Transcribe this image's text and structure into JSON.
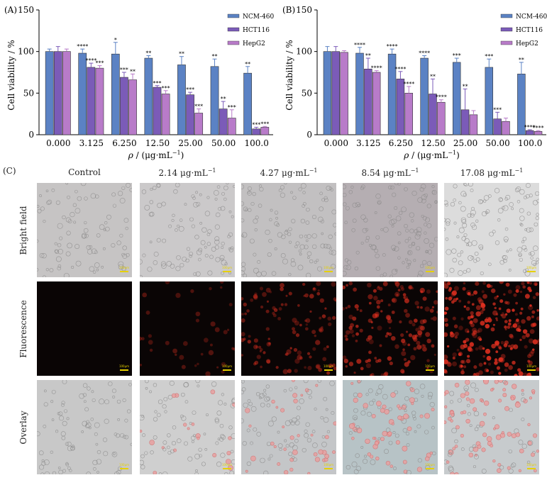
{
  "chart_data": [
    {
      "type": "bar",
      "panel_label": "(A)",
      "categories": [
        "0.000",
        "3.125",
        "6.250",
        "12.50",
        "25.00",
        "50.00",
        "100.0"
      ],
      "xlabel_symbol": "ρ",
      "xlabel_unit": " / (μg·mL",
      "xlabel_sup": "−1",
      "xlabel_tail": ")",
      "ylabel": "Cell viability / %",
      "ylim": [
        0,
        150
      ],
      "yticks": [
        "0",
        "50",
        "100",
        "150"
      ],
      "legend_position": "top-right",
      "series": [
        {
          "name": "NCM-460",
          "color": "#5b82c4",
          "values": [
            100,
            98,
            97,
            92,
            84,
            82,
            74
          ],
          "errors": [
            3,
            5,
            14,
            3,
            10,
            9,
            8
          ],
          "sig": [
            "",
            "****",
            "*",
            "**",
            "**",
            "**",
            "**"
          ]
        },
        {
          "name": "HCT116",
          "color": "#7b5bb8",
          "values": [
            100,
            81,
            69,
            57,
            48,
            31,
            7
          ],
          "errors": [
            6,
            5,
            6,
            2,
            3,
            9,
            2
          ],
          "sig": [
            "",
            "****",
            "***",
            "***",
            "***",
            "**",
            "***"
          ]
        },
        {
          "name": "HepG2",
          "color": "#b87bc9",
          "values": [
            100,
            80,
            66,
            49,
            26,
            20,
            9
          ],
          "errors": [
            3,
            3,
            7,
            4,
            5,
            10,
            1
          ],
          "sig": [
            "",
            "***",
            "**",
            "***",
            "***",
            "***",
            "***"
          ]
        }
      ]
    },
    {
      "type": "bar",
      "panel_label": "(B)",
      "categories": [
        "0.000",
        "3.125",
        "6.250",
        "12.50",
        "25.00",
        "50.00",
        "100.0"
      ],
      "xlabel_symbol": "ρ",
      "xlabel_unit": " / (μg·mL",
      "xlabel_sup": "−1",
      "xlabel_tail": ")",
      "ylabel": "Cell viability / %",
      "ylim": [
        0,
        150
      ],
      "yticks": [
        "0",
        "50",
        "100",
        "150"
      ],
      "legend_position": "top-right",
      "series": [
        {
          "name": "NCM-460",
          "color": "#5b82c4",
          "values": [
            100,
            98,
            97,
            92,
            87,
            81,
            73
          ],
          "errors": [
            6,
            7,
            6,
            3,
            5,
            10,
            14
          ],
          "sig": [
            "",
            "****",
            "****",
            "****",
            "***",
            "***",
            "**"
          ]
        },
        {
          "name": "HCT116",
          "color": "#7b5bb8",
          "values": [
            100,
            79,
            67,
            49,
            30,
            19,
            5
          ],
          "errors": [
            6,
            13,
            9,
            18,
            25,
            8,
            1
          ],
          "sig": [
            "",
            "**",
            "****",
            "**",
            "**",
            "***",
            "****"
          ]
        },
        {
          "name": "HepG2",
          "color": "#b87bc9",
          "values": [
            99,
            75,
            50,
            39,
            24,
            16,
            4
          ],
          "errors": [
            2,
            2,
            8,
            3,
            5,
            4,
            1
          ],
          "sig": [
            "",
            "****",
            "****",
            "****",
            "",
            "",
            "****"
          ]
        }
      ]
    }
  ],
  "grid": {
    "panel_label": "(C)",
    "columns": [
      {
        "prefix": "",
        "text": "Control",
        "sup": ""
      },
      {
        "prefix": "",
        "text": "2.14 μg·mL",
        "sup": "−1"
      },
      {
        "prefix": "",
        "text": "4.27 μg·mL",
        "sup": "−1"
      },
      {
        "prefix": "",
        "text": "8.54 μg·mL",
        "sup": "−1"
      },
      {
        "prefix": "",
        "text": "17.08 μg·mL",
        "sup": "−1"
      }
    ],
    "rows": [
      "Bright field",
      "Fluorescence",
      "Overlay"
    ],
    "scale_text": "100μm",
    "bright_bg": [
      "#c6c4c4",
      "#cbc9ca",
      "#c2c0c1",
      "#b5aeb2",
      "#dcdcdc"
    ],
    "fluor_intensity": [
      0.0,
      0.15,
      0.45,
      0.6,
      0.95
    ],
    "overlay_bg": [
      "#c8c8c8",
      "#cfcfcf",
      "#c4c6c8",
      "#b7c3c6",
      "#c7cbcd"
    ],
    "overlay_red": [
      0.0,
      0.15,
      0.35,
      0.5,
      0.7
    ],
    "colors": {
      "fluor_bg": "#0a0505",
      "red": "#e23020",
      "scale": "#e6d000"
    }
  }
}
